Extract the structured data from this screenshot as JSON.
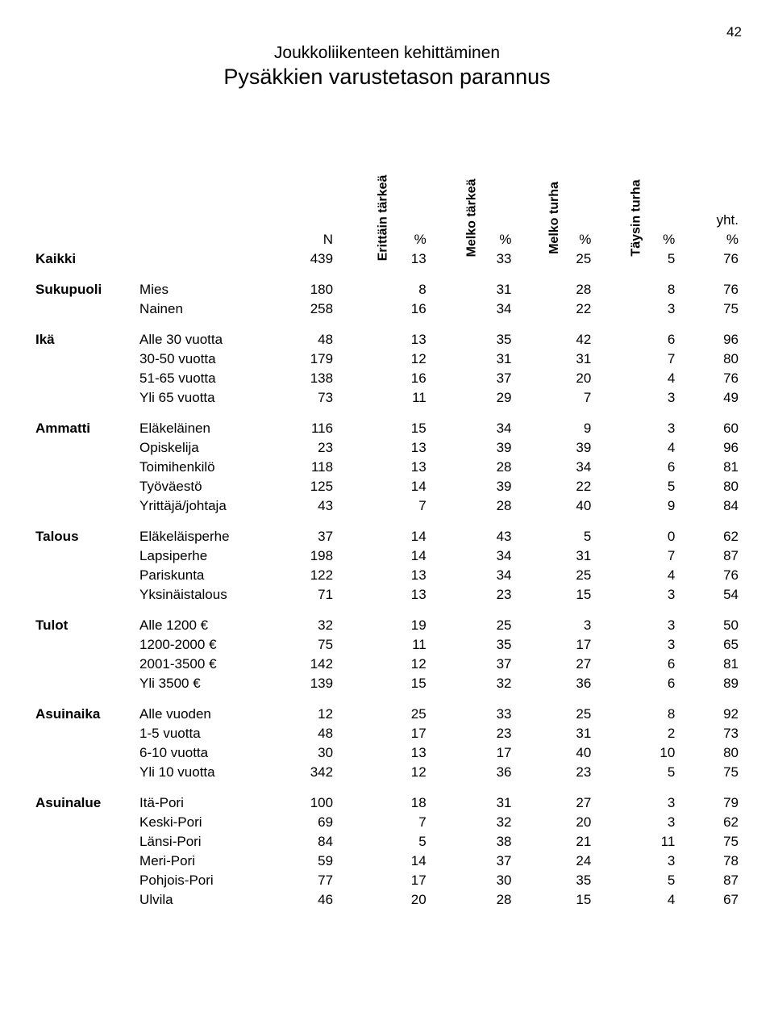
{
  "page_number": "42",
  "section_title": "Joukkoliikenteen kehittäminen",
  "subtitle": "Pysäkkien varustetason parannus",
  "headers": {
    "n": "N",
    "col1": "Erittäin tärkeä",
    "col2": "Melko tärkeä",
    "col3": "Melko turha",
    "col4": "Täysin turha",
    "pct": "%",
    "sum_label": "yht.",
    "sum_pct": "%"
  },
  "total_row": {
    "label": "Kaikki",
    "n": "439",
    "v": [
      "13",
      "33",
      "25",
      "5"
    ],
    "sum": "76"
  },
  "groups": [
    {
      "category": "Sukupuoli",
      "rows": [
        {
          "label": "Mies",
          "n": "180",
          "v": [
            "8",
            "31",
            "28",
            "8"
          ],
          "sum": "76"
        },
        {
          "label": "Nainen",
          "n": "258",
          "v": [
            "16",
            "34",
            "22",
            "3"
          ],
          "sum": "75"
        }
      ]
    },
    {
      "category": "Ikä",
      "rows": [
        {
          "label": "Alle 30 vuotta",
          "n": "48",
          "v": [
            "13",
            "35",
            "42",
            "6"
          ],
          "sum": "96"
        },
        {
          "label": "30-50 vuotta",
          "n": "179",
          "v": [
            "12",
            "31",
            "31",
            "7"
          ],
          "sum": "80"
        },
        {
          "label": "51-65 vuotta",
          "n": "138",
          "v": [
            "16",
            "37",
            "20",
            "4"
          ],
          "sum": "76"
        },
        {
          "label": "Yli 65 vuotta",
          "n": "73",
          "v": [
            "11",
            "29",
            "7",
            "3"
          ],
          "sum": "49"
        }
      ]
    },
    {
      "category": "Ammatti",
      "rows": [
        {
          "label": "Eläkeläinen",
          "n": "116",
          "v": [
            "15",
            "34",
            "9",
            "3"
          ],
          "sum": "60"
        },
        {
          "label": "Opiskelija",
          "n": "23",
          "v": [
            "13",
            "39",
            "39",
            "4"
          ],
          "sum": "96"
        },
        {
          "label": "Toimihenkilö",
          "n": "118",
          "v": [
            "13",
            "28",
            "34",
            "6"
          ],
          "sum": "81"
        },
        {
          "label": "Työväestö",
          "n": "125",
          "v": [
            "14",
            "39",
            "22",
            "5"
          ],
          "sum": "80"
        },
        {
          "label": "Yrittäjä/johtaja",
          "n": "43",
          "v": [
            "7",
            "28",
            "40",
            "9"
          ],
          "sum": "84"
        }
      ]
    },
    {
      "category": "Talous",
      "rows": [
        {
          "label": "Eläkeläisperhe",
          "n": "37",
          "v": [
            "14",
            "43",
            "5",
            "0"
          ],
          "sum": "62"
        },
        {
          "label": "Lapsiperhe",
          "n": "198",
          "v": [
            "14",
            "34",
            "31",
            "7"
          ],
          "sum": "87"
        },
        {
          "label": "Pariskunta",
          "n": "122",
          "v": [
            "13",
            "34",
            "25",
            "4"
          ],
          "sum": "76"
        },
        {
          "label": "Yksinäistalous",
          "n": "71",
          "v": [
            "13",
            "23",
            "15",
            "3"
          ],
          "sum": "54"
        }
      ]
    },
    {
      "category": "Tulot",
      "rows": [
        {
          "label": "Alle 1200 €",
          "n": "32",
          "v": [
            "19",
            "25",
            "3",
            "3"
          ],
          "sum": "50"
        },
        {
          "label": "1200-2000 €",
          "n": "75",
          "v": [
            "11",
            "35",
            "17",
            "3"
          ],
          "sum": "65"
        },
        {
          "label": "2001-3500 €",
          "n": "142",
          "v": [
            "12",
            "37",
            "27",
            "6"
          ],
          "sum": "81"
        },
        {
          "label": "Yli 3500 €",
          "n": "139",
          "v": [
            "15",
            "32",
            "36",
            "6"
          ],
          "sum": "89"
        }
      ]
    },
    {
      "category": "Asuinaika",
      "rows": [
        {
          "label": "Alle vuoden",
          "n": "12",
          "v": [
            "25",
            "33",
            "25",
            "8"
          ],
          "sum": "92"
        },
        {
          "label": "1-5 vuotta",
          "n": "48",
          "v": [
            "17",
            "23",
            "31",
            "2"
          ],
          "sum": "73"
        },
        {
          "label": "6-10 vuotta",
          "n": "30",
          "v": [
            "13",
            "17",
            "40",
            "10"
          ],
          "sum": "80"
        },
        {
          "label": "Yli 10 vuotta",
          "n": "342",
          "v": [
            "12",
            "36",
            "23",
            "5"
          ],
          "sum": "75"
        }
      ]
    },
    {
      "category": "Asuinalue",
      "rows": [
        {
          "label": "Itä-Pori",
          "n": "100",
          "v": [
            "18",
            "31",
            "27",
            "3"
          ],
          "sum": "79"
        },
        {
          "label": "Keski-Pori",
          "n": "69",
          "v": [
            "7",
            "32",
            "20",
            "3"
          ],
          "sum": "62"
        },
        {
          "label": "Länsi-Pori",
          "n": "84",
          "v": [
            "5",
            "38",
            "21",
            "11"
          ],
          "sum": "75"
        },
        {
          "label": "Meri-Pori",
          "n": "59",
          "v": [
            "14",
            "37",
            "24",
            "3"
          ],
          "sum": "78"
        },
        {
          "label": "Pohjois-Pori",
          "n": "77",
          "v": [
            "17",
            "30",
            "35",
            "5"
          ],
          "sum": "87"
        },
        {
          "label": "Ulvila",
          "n": "46",
          "v": [
            "20",
            "28",
            "15",
            "4"
          ],
          "sum": "67"
        }
      ]
    }
  ]
}
